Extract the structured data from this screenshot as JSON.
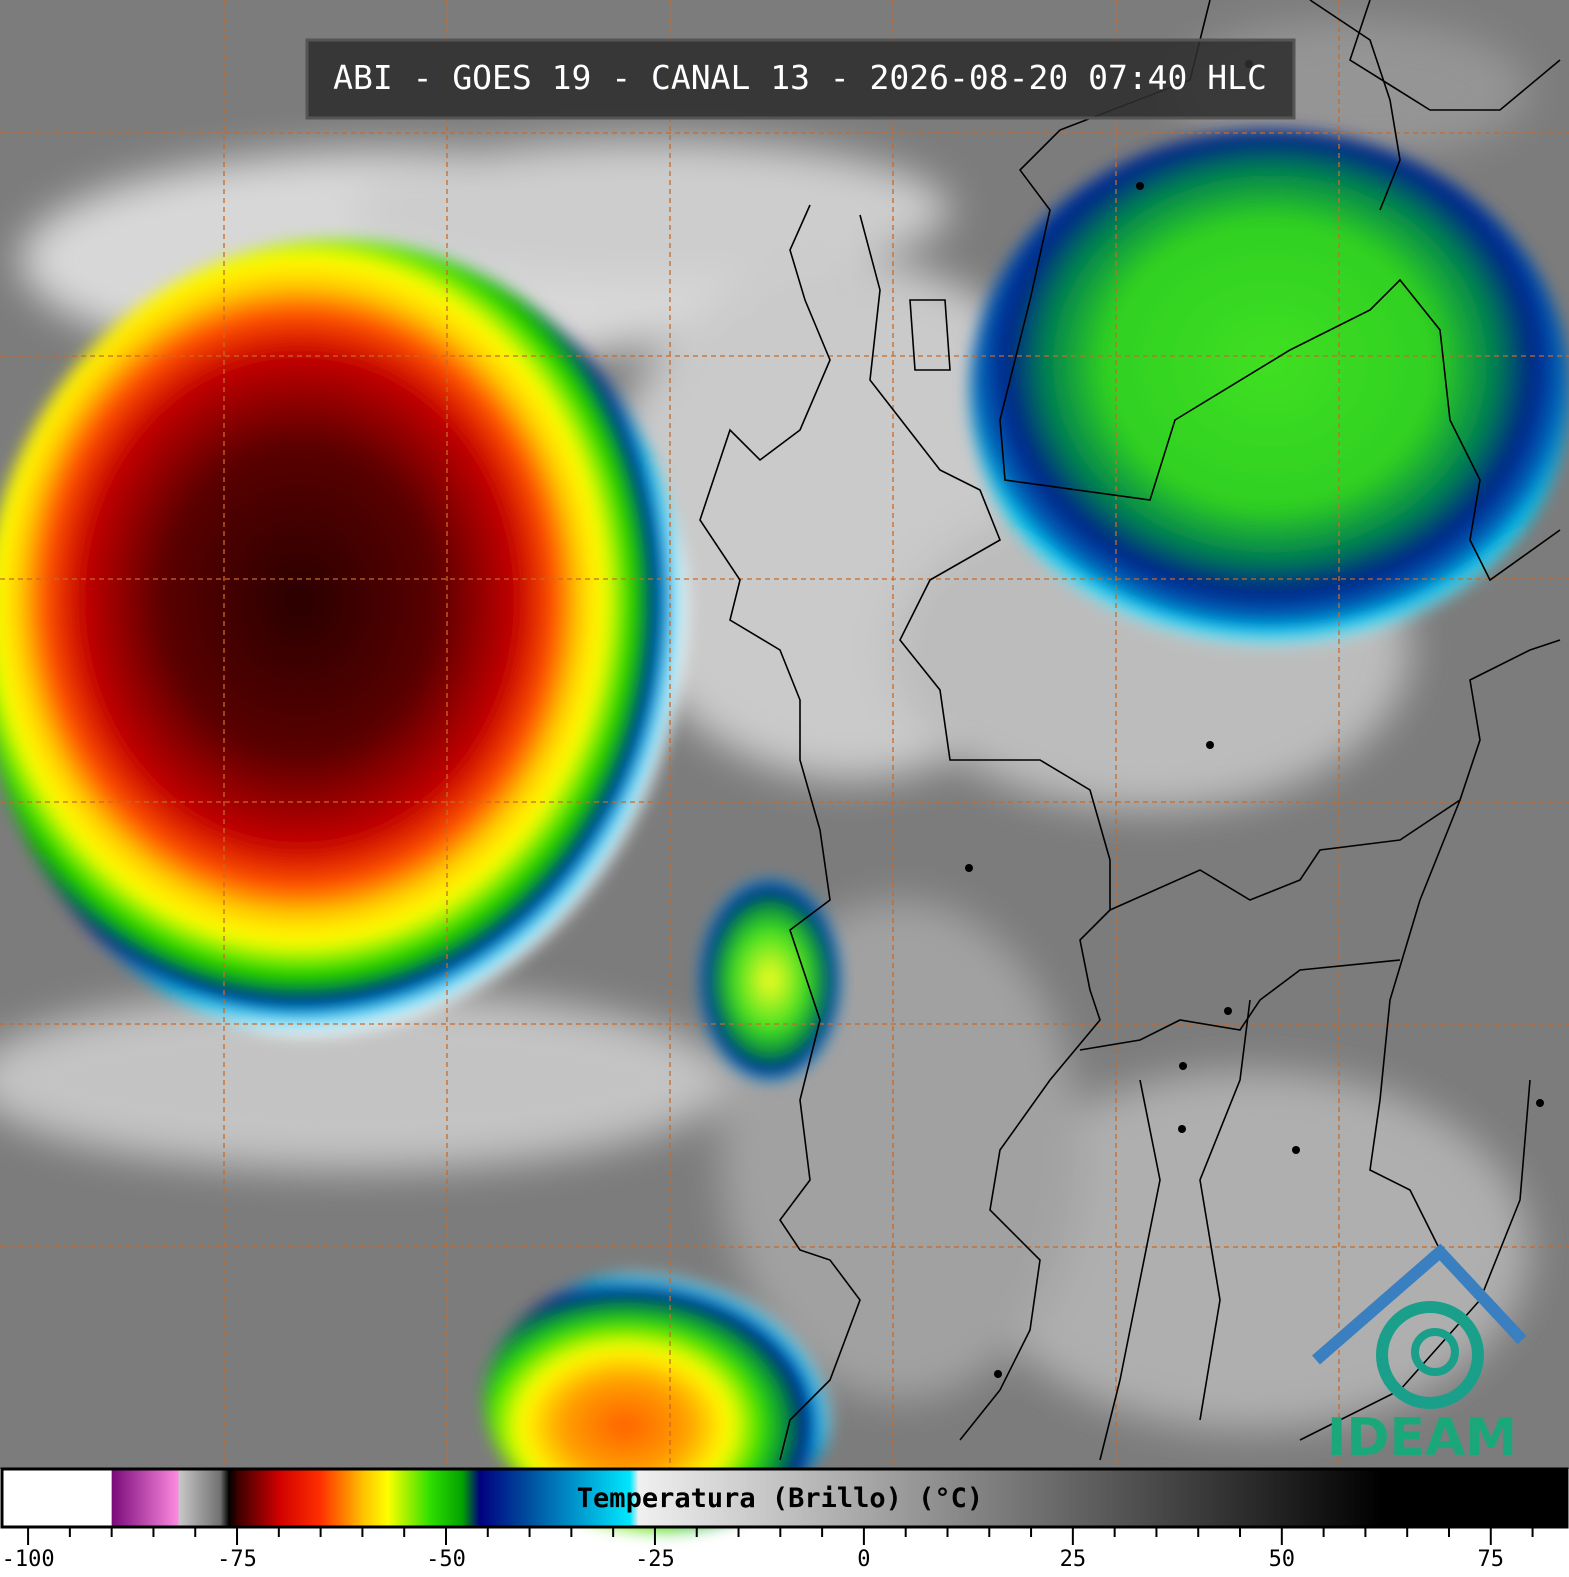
{
  "title": "ABI - GOES 19 - CANAL 13 - 2026-08-20 07:40 HLC",
  "logo": "IDEAM",
  "colorbar": {
    "label": "Temperatura (Brillo) (°C)",
    "xlim": [
      -103,
      84
    ],
    "xticks": [
      -100,
      -75,
      -50,
      -25,
      0,
      25,
      50,
      75
    ],
    "minor_xticks": [
      -95,
      -90,
      -85,
      -80,
      -70,
      -65,
      -60,
      -55,
      -45,
      -40,
      -35,
      -30,
      -20,
      -15,
      -10,
      -5,
      5,
      10,
      15,
      20,
      30,
      35,
      40,
      45,
      55,
      60,
      65,
      70,
      80
    ],
    "colormap": [
      {
        "value": -103,
        "color": "#ffffff"
      },
      {
        "value": -90,
        "color": "#ffffff"
      },
      {
        "value": -90,
        "color": "#7a0a7a"
      },
      {
        "value": -82,
        "color": "#ff8ce0"
      },
      {
        "value": -82,
        "color": "#c8c8c8"
      },
      {
        "value": -77,
        "color": "#707070"
      },
      {
        "value": -76,
        "color": "#000000"
      },
      {
        "value": -75,
        "color": "#3a0000"
      },
      {
        "value": -70,
        "color": "#d00000"
      },
      {
        "value": -65,
        "color": "#ff3000"
      },
      {
        "value": -60,
        "color": "#ffc000"
      },
      {
        "value": -57,
        "color": "#ffff00"
      },
      {
        "value": -52,
        "color": "#30e000"
      },
      {
        "value": -48,
        "color": "#00a000"
      },
      {
        "value": -46,
        "color": "#000080"
      },
      {
        "value": -40,
        "color": "#0050a0"
      },
      {
        "value": -28,
        "color": "#00e8ff"
      },
      {
        "value": -27,
        "color": "#f0f0f0"
      },
      {
        "value": 62,
        "color": "#000000"
      },
      {
        "value": 84,
        "color": "#000000"
      }
    ]
  }
}
